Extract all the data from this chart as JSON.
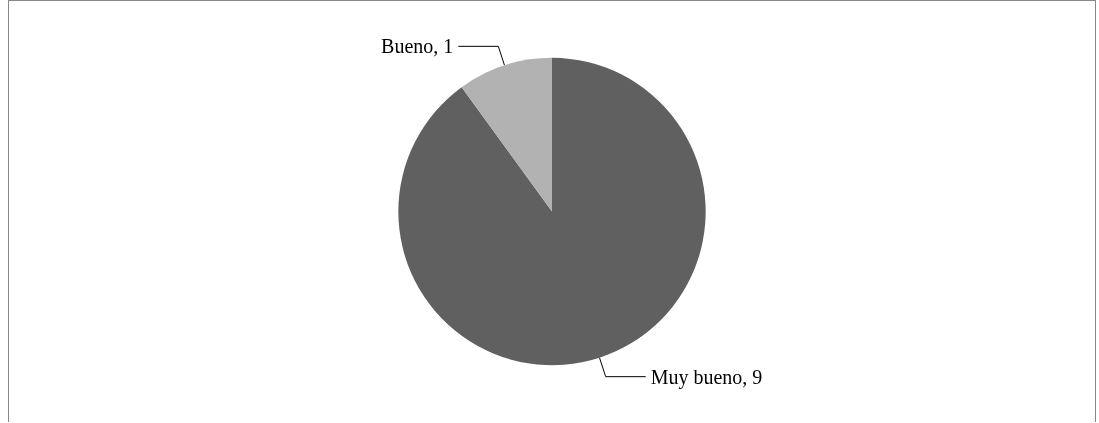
{
  "chart_data": {
    "type": "pie",
    "categories": [
      "Muy bueno",
      "Bueno"
    ],
    "values": [
      9,
      1
    ],
    "colors": [
      "#606060",
      "#b2b2b2"
    ],
    "value_labels": [
      ", 9",
      ", 1"
    ],
    "legend": false
  }
}
